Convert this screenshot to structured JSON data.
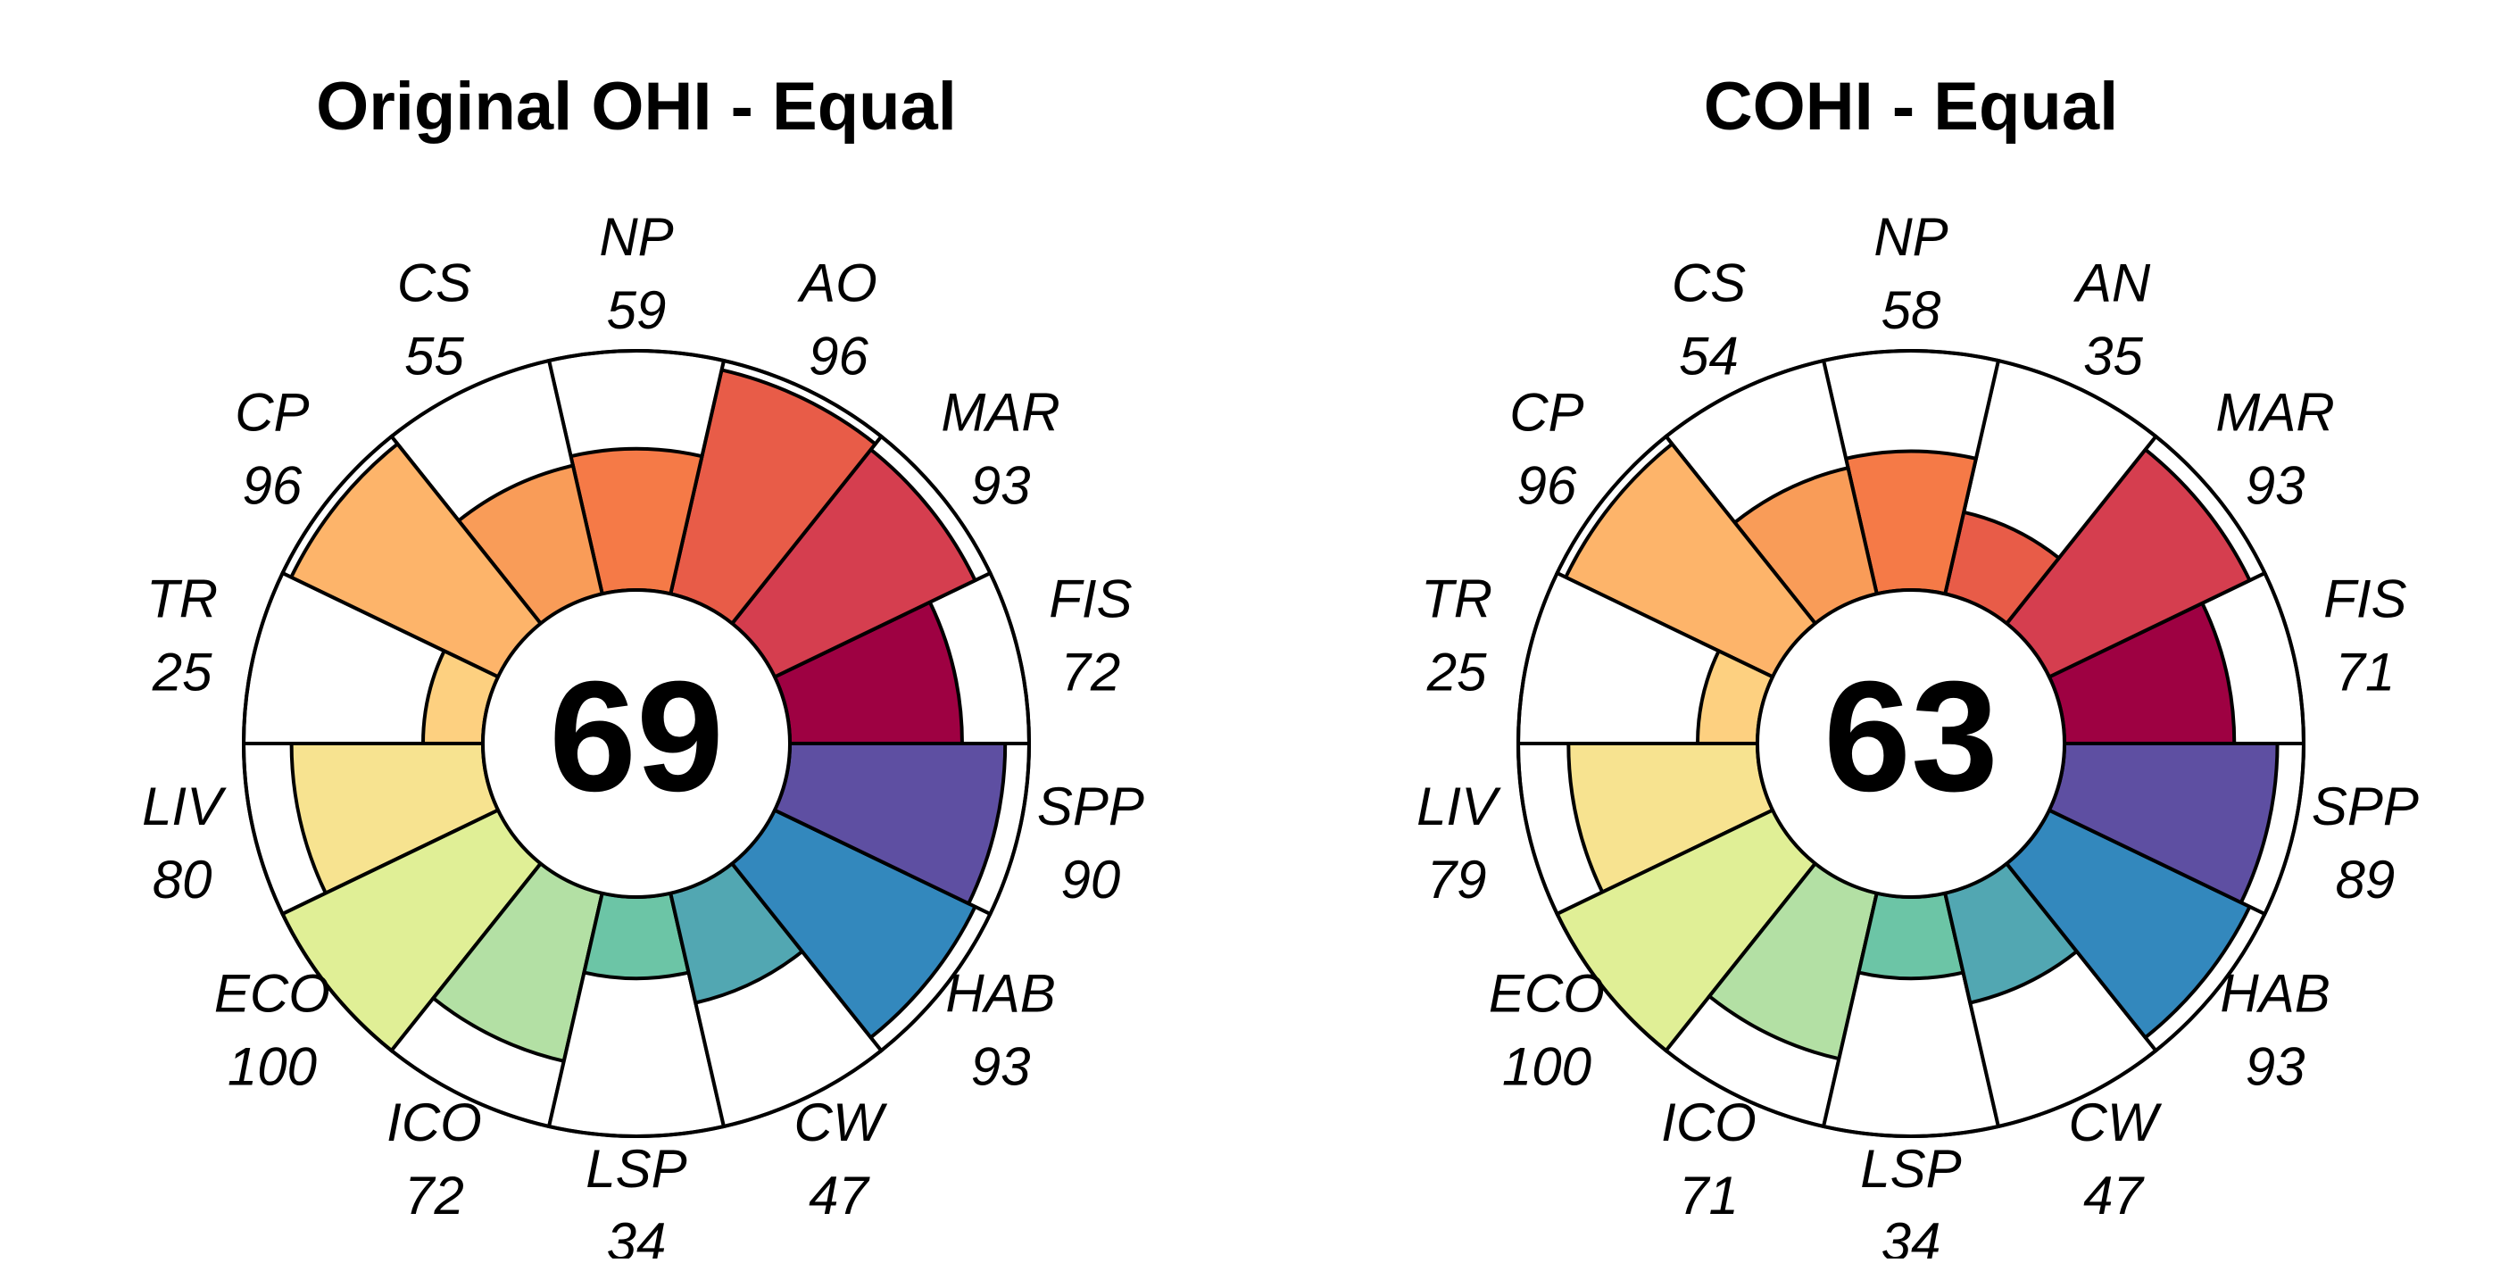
{
  "chart_data": [
    {
      "type": "flower",
      "title": "Original OHI - Equal",
      "center_score": "69",
      "ylim": [
        0,
        100
      ],
      "petals": [
        {
          "label": "FIS",
          "value": 72,
          "color": "#9E0142"
        },
        {
          "label": "MAR",
          "value": 93,
          "color": "#D53E4F"
        },
        {
          "label": "AO",
          "value": 96,
          "color": "#E85C48"
        },
        {
          "label": "NP",
          "value": 59,
          "color": "#F57A47"
        },
        {
          "label": "CS",
          "value": 55,
          "color": "#F99C58"
        },
        {
          "label": "CP",
          "value": 96,
          "color": "#FDB46A"
        },
        {
          "label": "TR",
          "value": 25,
          "color": "#FDD080"
        },
        {
          "label": "LIV",
          "value": 80,
          "color": "#F7E390"
        },
        {
          "label": "ECO",
          "value": 100,
          "color": "#E0EF96"
        },
        {
          "label": "ICO",
          "value": 72,
          "color": "#B3E0A4"
        },
        {
          "label": "LSP",
          "value": 34,
          "color": "#6CC5A6"
        },
        {
          "label": "CW",
          "value": 47,
          "color": "#52A7B2"
        },
        {
          "label": "HAB",
          "value": 93,
          "color": "#3388BD"
        },
        {
          "label": "SPP",
          "value": 90,
          "color": "#5E4FA2"
        }
      ]
    },
    {
      "type": "flower",
      "title": "COHI - Equal",
      "center_score": "63",
      "ylim": [
        0,
        100
      ],
      "petals": [
        {
          "label": "FIS",
          "value": 71,
          "color": "#9E0142"
        },
        {
          "label": "MAR",
          "value": 93,
          "color": "#D53E4F"
        },
        {
          "label": "AN",
          "value": 35,
          "color": "#E85C48"
        },
        {
          "label": "NP",
          "value": 58,
          "color": "#F57A47"
        },
        {
          "label": "CS",
          "value": 54,
          "color": "#F99C58"
        },
        {
          "label": "CP",
          "value": 96,
          "color": "#FDB46A"
        },
        {
          "label": "TR",
          "value": 25,
          "color": "#FDD080"
        },
        {
          "label": "LIV",
          "value": 79,
          "color": "#F7E390"
        },
        {
          "label": "ECO",
          "value": 100,
          "color": "#E0EF96"
        },
        {
          "label": "ICO",
          "value": 71,
          "color": "#B3E0A4"
        },
        {
          "label": "LSP",
          "value": 34,
          "color": "#6CC5A6"
        },
        {
          "label": "CW",
          "value": 47,
          "color": "#52A7B2"
        },
        {
          "label": "HAB",
          "value": 93,
          "color": "#3388BD"
        },
        {
          "label": "SPP",
          "value": 89,
          "color": "#5E4FA2"
        }
      ]
    }
  ]
}
